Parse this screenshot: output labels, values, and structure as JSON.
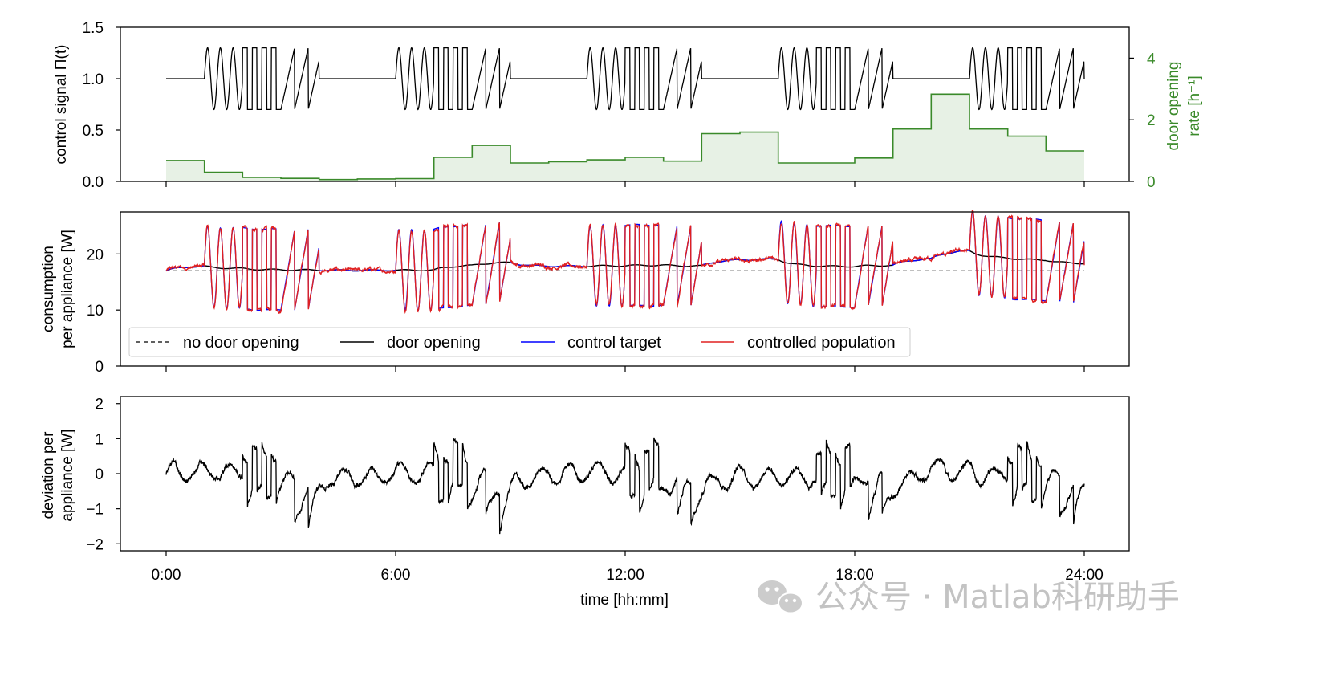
{
  "chart_data": {
    "type": "line",
    "x_ticks": [
      "0:00",
      "6:00",
      "12:00",
      "18:00",
      "24:00"
    ],
    "xlabel": "time [hh:mm]",
    "panels": [
      {
        "id": "control",
        "ylabel": "control signal Π(t)",
        "ylim": [
          0,
          1.5
        ],
        "y_ticks": [
          0.0,
          0.5,
          1.0,
          1.5
        ],
        "y_tick_labels": [
          "0.0",
          "0.5",
          "1.0",
          "1.5"
        ],
        "secondary_axis": {
          "ylabel_line1": "door opening",
          "ylabel_line2": "rate [h⁻¹]",
          "ylim": [
            0,
            5
          ],
          "y_ticks": [
            0,
            2,
            4
          ],
          "y_tick_labels": [
            "0",
            "2",
            "4"
          ],
          "color": "#3a8a2a"
        },
        "control_signal": {
          "baseline": 1.0,
          "high": 1.3,
          "low": 0.7,
          "active_windows": [
            [
              1.0,
              4.0
            ],
            [
              6.0,
              9.0
            ],
            [
              11.0,
              14.0
            ],
            [
              16.0,
              19.0
            ],
            [
              21.0,
              24.0
            ]
          ]
        },
        "door_opening_rate": {
          "hours": [
            0,
            1,
            2,
            3,
            4,
            5,
            6,
            7,
            8,
            9,
            10,
            11,
            12,
            13,
            14,
            15,
            16,
            17,
            18,
            19,
            20,
            21,
            22,
            23
          ],
          "values": [
            0.68,
            0.3,
            0.13,
            0.1,
            0.06,
            0.08,
            0.09,
            0.78,
            1.17,
            0.6,
            0.64,
            0.7,
            0.78,
            0.66,
            1.55,
            1.6,
            0.6,
            0.6,
            0.76,
            1.7,
            2.83,
            1.7,
            1.47,
            0.99
          ]
        }
      },
      {
        "id": "consumption",
        "ylabel_line1": "consumption",
        "ylabel_line2": "per appliance [W]",
        "ylim": [
          0,
          27.5
        ],
        "y_ticks": [
          0,
          10,
          20
        ],
        "y_tick_labels": [
          "0",
          "10",
          "20"
        ],
        "no_door_opening_level": 17.0,
        "series": [
          {
            "name": "no door opening",
            "color": "#000000",
            "style": "dashed"
          },
          {
            "name": "door opening",
            "color": "#000000",
            "style": "solid"
          },
          {
            "name": "control target",
            "color": "#0000ff",
            "style": "solid"
          },
          {
            "name": "controlled population",
            "color": "#e02020",
            "style": "solid"
          }
        ]
      },
      {
        "id": "deviation",
        "ylabel_line1": "deviation per",
        "ylabel_line2": "appliance [W]",
        "ylim": [
          -2.2,
          2.2
        ],
        "y_ticks": [
          -2,
          -1,
          0,
          1,
          2
        ],
        "y_tick_labels": [
          "−2",
          "−1",
          "0",
          "1",
          "2"
        ]
      }
    ]
  },
  "watermark": {
    "text": "公众号 · Matlab科研助手",
    "icon": "wechat-icon"
  }
}
